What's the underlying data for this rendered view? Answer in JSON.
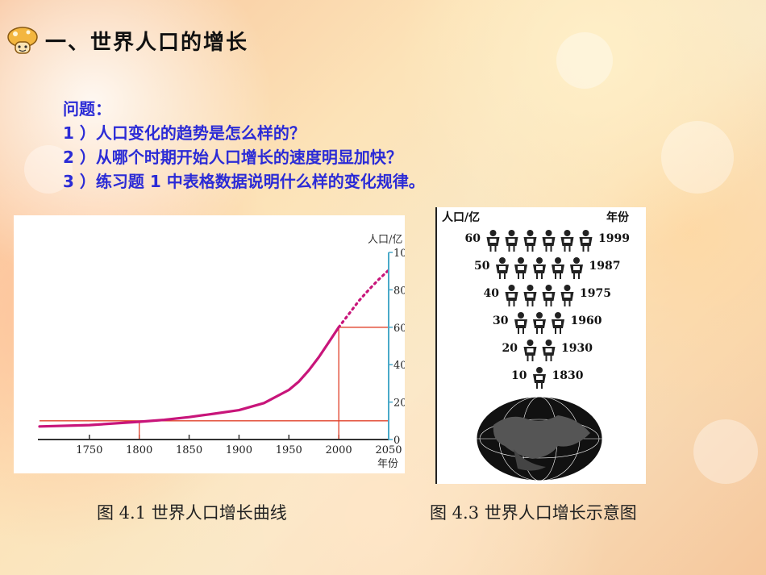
{
  "slide_title": "一、世界人口的增长",
  "questions": {
    "heading": "问题：",
    "q1": "1 ）人口变化的趋势是怎么样的？",
    "q2": "2 ）从哪个时期开始人口增长的速度明显加快？",
    "q3": "3 ）练习题 1 中表格数据说明什么样的变化规律。"
  },
  "captions": {
    "fig1": "图 4.1 世界人口增长曲线",
    "fig2": "图 4.3 世界人口增长示意图"
  },
  "chart_data": [
    {
      "type": "line",
      "title": "",
      "xlabel": "年份",
      "ylabel": "人口/亿",
      "xlim": [
        1700,
        2050
      ],
      "ylim": [
        0,
        100
      ],
      "x_ticks": [
        1750,
        1800,
        1850,
        1900,
        1950,
        2000,
        2050
      ],
      "y_ticks": [
        0,
        20,
        40,
        60,
        80,
        100
      ],
      "series": [
        {
          "style": "solid",
          "x": [
            1700,
            1750,
            1800,
            1825,
            1850,
            1875,
            1900,
            1925,
            1950,
            1960,
            1970,
            1980,
            1990,
            2000
          ],
          "y": [
            7,
            7.7,
            9.5,
            10.5,
            12,
            13.8,
            15.7,
            19.5,
            26.5,
            31,
            37,
            44,
            52,
            60
          ]
        },
        {
          "style": "dotted",
          "x": [
            2000,
            2010,
            2020,
            2030,
            2040,
            2050
          ],
          "y": [
            60,
            67,
            74,
            80,
            85.5,
            90.5
          ]
        }
      ],
      "reference_lines": [
        {
          "x": 1800,
          "y": 10
        },
        {
          "x": 2000,
          "y": 60
        }
      ],
      "colors": {
        "curve": "#c8157a",
        "reference": "#e0402a",
        "axis": "#4aa9c9"
      }
    },
    {
      "type": "pictogram",
      "xlabel": "年份",
      "ylabel": "人口/亿",
      "rows": [
        {
          "population": "60",
          "year": "1999",
          "figures": 6
        },
        {
          "population": "50",
          "year": "1987",
          "figures": 5
        },
        {
          "population": "40",
          "year": "1975",
          "figures": 4
        },
        {
          "population": "30",
          "year": "1960",
          "figures": 3
        },
        {
          "population": "20",
          "year": "1930",
          "figures": 2
        },
        {
          "population": "10",
          "year": "1830",
          "figures": 1
        }
      ]
    }
  ]
}
